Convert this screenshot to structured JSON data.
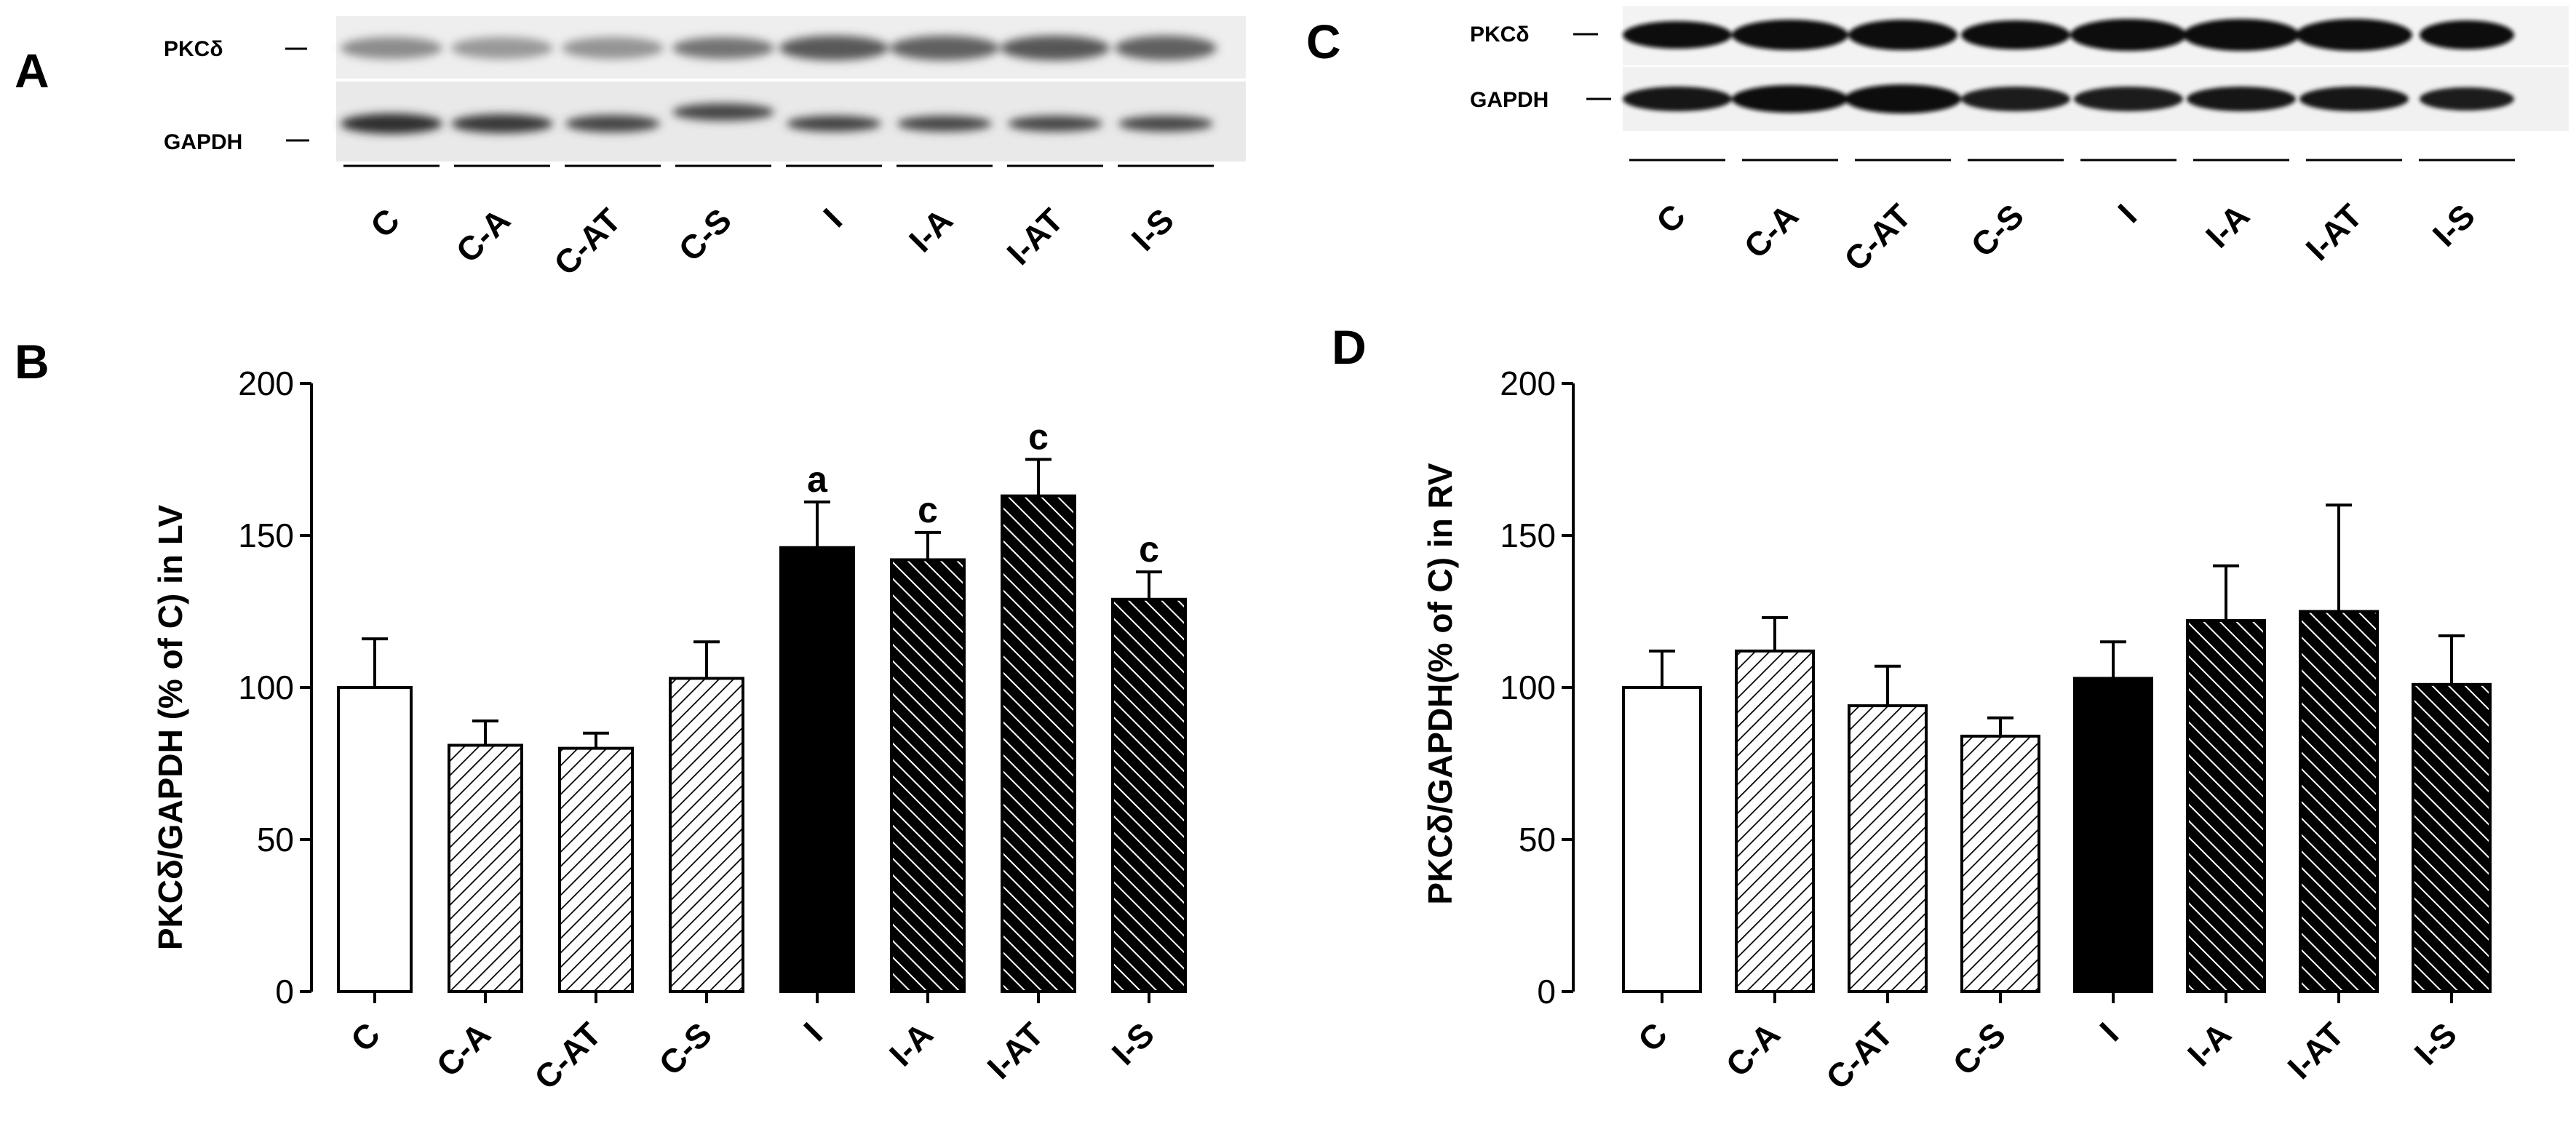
{
  "panels": [
    {
      "letter": "A",
      "blot": {
        "protein_label": "PKCδ",
        "control_label": "GAPDH",
        "lane_labels": [
          "C",
          "C-A",
          "C-AT",
          "C-S",
          "I",
          "I-A",
          "I-AT",
          "I-S"
        ]
      }
    },
    {
      "letter": "B"
    },
    {
      "letter": "C",
      "blot": {
        "protein_label": "PKCδ",
        "control_label": "GAPDH",
        "lane_labels": [
          "C",
          "C-A",
          "C-AT",
          "C-S",
          "I",
          "I-A",
          "I-AT",
          "I-S"
        ]
      }
    },
    {
      "letter": "D"
    }
  ],
  "chart_data": [
    {
      "type": "bar",
      "panel": "B",
      "categories": [
        "C",
        "C-A",
        "C-AT",
        "C-S",
        "I",
        "I-A",
        "I-AT",
        "I-S"
      ],
      "values": [
        100,
        81,
        80,
        103,
        146,
        142,
        163,
        129
      ],
      "errors": [
        16,
        8,
        5,
        12,
        15,
        9,
        12,
        9
      ],
      "annotations": [
        "",
        "",
        "",
        "",
        "a",
        "c",
        "c",
        "c"
      ],
      "fills": [
        "white",
        "hatch-light",
        "hatch-light",
        "hatch-light",
        "black",
        "hatch-dark",
        "hatch-dark",
        "hatch-dark"
      ],
      "ylabel": "PKCδ/GAPDH (% of C) in LV",
      "xlabel": "",
      "ylim": [
        0,
        200
      ],
      "yticks": [
        0,
        50,
        100,
        150,
        200
      ],
      "grid": false
    },
    {
      "type": "bar",
      "panel": "D",
      "categories": [
        "C",
        "C-A",
        "C-AT",
        "C-S",
        "I",
        "I-A",
        "I-AT",
        "I-S"
      ],
      "values": [
        100,
        112,
        94,
        84,
        103,
        122,
        125,
        101
      ],
      "errors": [
        12,
        11,
        13,
        6,
        12,
        18,
        35,
        16
      ],
      "annotations": [
        "",
        "",
        "",
        "",
        "",
        "",
        "",
        ""
      ],
      "fills": [
        "white",
        "hatch-light",
        "hatch-light",
        "hatch-light",
        "black",
        "hatch-dark",
        "hatch-dark",
        "hatch-dark"
      ],
      "ylabel": "PKCδ/GAPDH(% of C) in RV",
      "xlabel": "",
      "ylim": [
        0,
        200
      ],
      "yticks": [
        0,
        50,
        100,
        150,
        200
      ],
      "grid": false
    }
  ],
  "colors": {
    "ink": "#000000",
    "background": "#ffffff"
  }
}
